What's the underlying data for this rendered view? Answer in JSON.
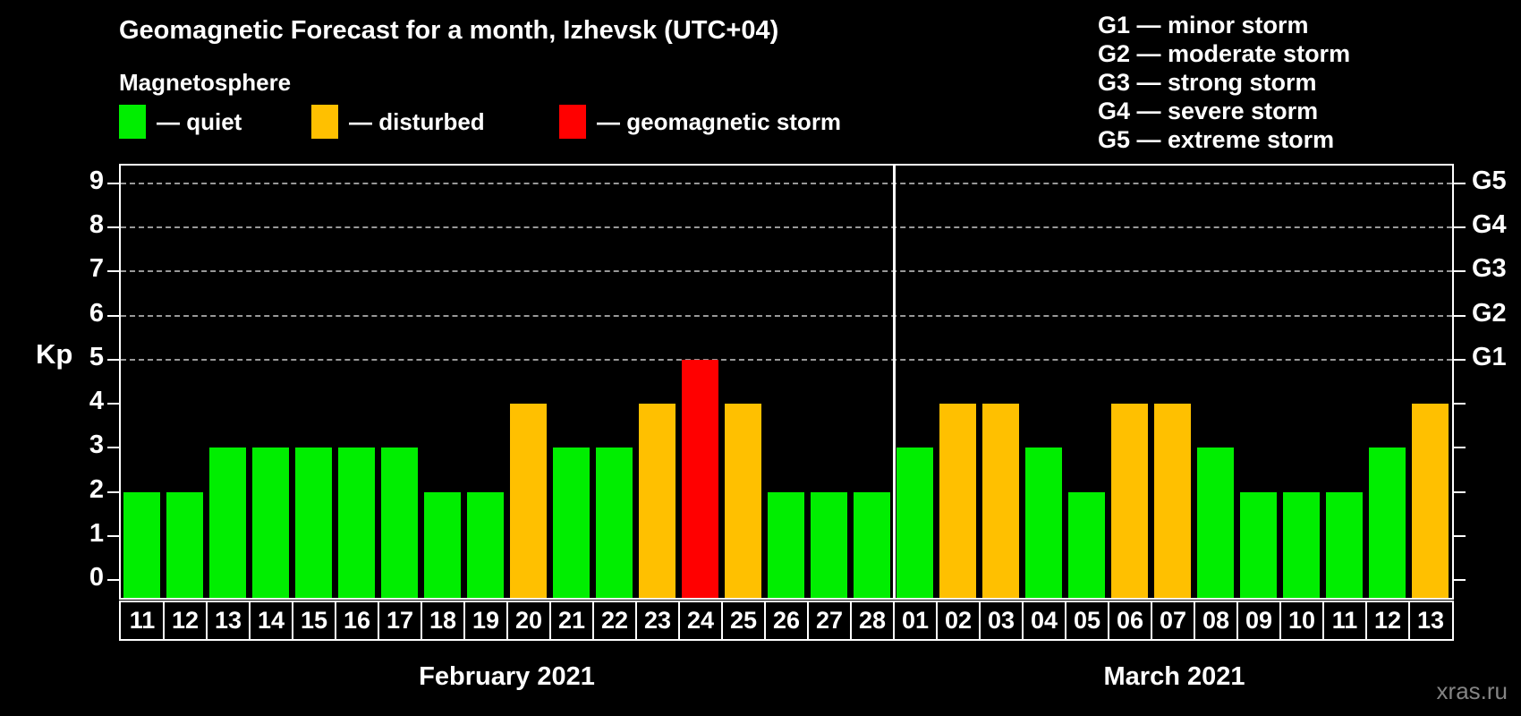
{
  "header": {
    "title": "Geomagnetic Forecast for a month, Izhevsk (UTC+04)",
    "subtitle": "Magnetosphere"
  },
  "magnetosphere_legend": [
    {
      "label": "— quiet",
      "level": "quiet",
      "color": "#00ee00"
    },
    {
      "label": "— disturbed",
      "level": "disturbed",
      "color": "#ffc000"
    },
    {
      "label": "— geomagnetic storm",
      "level": "storm",
      "color": "#ff0000"
    }
  ],
  "storm_scale_legend": [
    "G1 — minor storm",
    "G2 — moderate storm",
    "G3 — strong storm",
    "G4 — severe storm",
    "G5 — extreme storm"
  ],
  "watermark": "xras.ru",
  "chart_data": {
    "type": "bar",
    "title": "Geomagnetic Forecast for a month, Izhevsk (UTC+04)",
    "ylabel": "Kp",
    "ylim": [
      -0.4,
      9.4
    ],
    "yticks": [
      0,
      1,
      2,
      3,
      4,
      5,
      6,
      7,
      8,
      9
    ],
    "gridline_levels": [
      5,
      6,
      7,
      8,
      9
    ],
    "grid": "dashed, only at Kp 5-9",
    "right_axis_labels": [
      {
        "kp": 5,
        "label": "G1"
      },
      {
        "kp": 6,
        "label": "G2"
      },
      {
        "kp": 7,
        "label": "G3"
      },
      {
        "kp": 8,
        "label": "G4"
      },
      {
        "kp": 9,
        "label": "G5"
      }
    ],
    "colors": {
      "quiet": "#00ee00",
      "disturbed": "#ffc000",
      "storm": "#ff0000"
    },
    "color_rule": "Kp<=3 quiet(green), Kp==4 disturbed(orange), Kp>=5 storm(red)",
    "months": [
      {
        "label": "February 2021",
        "days": [
          "11",
          "12",
          "13",
          "14",
          "15",
          "16",
          "17",
          "18",
          "19",
          "20",
          "21",
          "22",
          "23",
          "24",
          "25",
          "26",
          "27",
          "28"
        ],
        "values": [
          2,
          2,
          3,
          3,
          3,
          3,
          3,
          2,
          2,
          4,
          3,
          3,
          4,
          5,
          4,
          2,
          2,
          2
        ]
      },
      {
        "label": "March 2021",
        "days": [
          "01",
          "02",
          "03",
          "04",
          "05",
          "06",
          "07",
          "08",
          "09",
          "10",
          "11",
          "12",
          "13"
        ],
        "values": [
          3,
          4,
          4,
          3,
          2,
          4,
          4,
          3,
          2,
          2,
          2,
          3,
          4
        ]
      }
    ]
  }
}
